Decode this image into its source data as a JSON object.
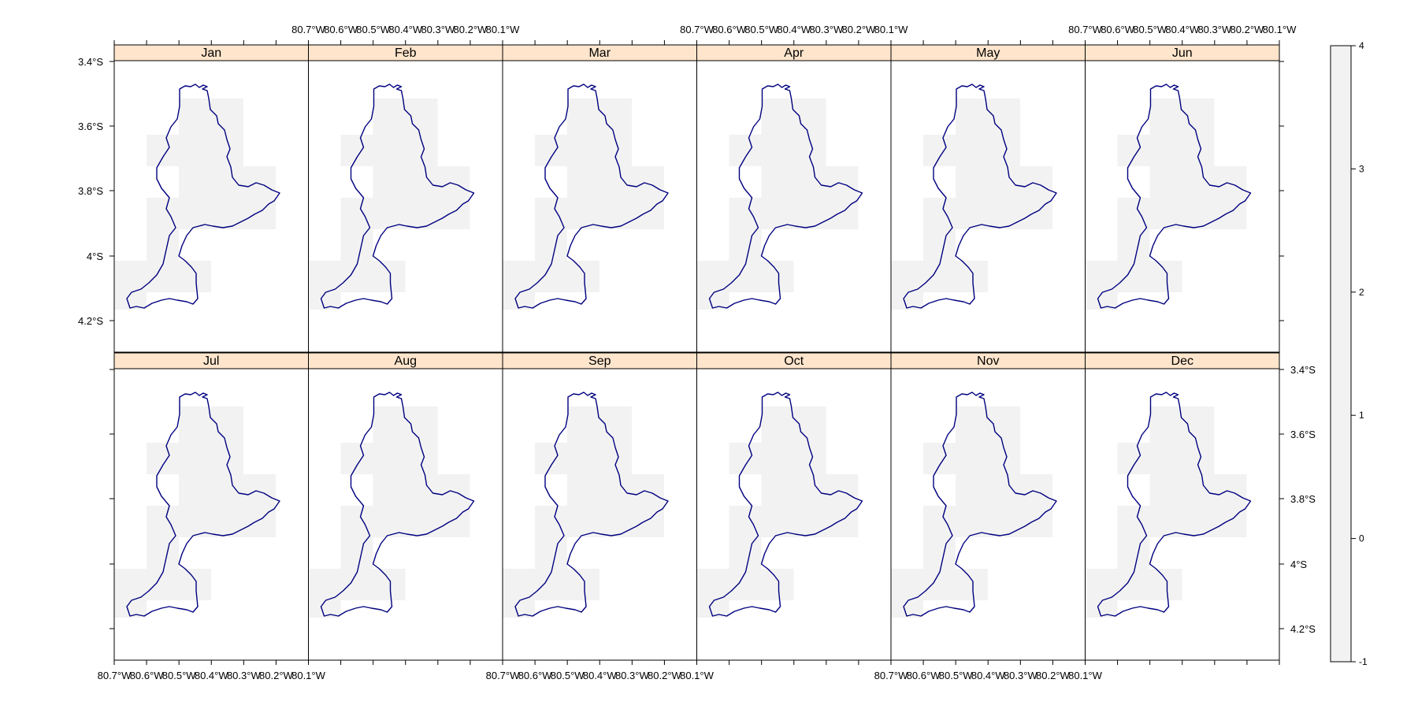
{
  "panels": [
    {
      "month": "Jan"
    },
    {
      "month": "Feb"
    },
    {
      "month": "Mar"
    },
    {
      "month": "Apr"
    },
    {
      "month": "May"
    },
    {
      "month": "Jun"
    },
    {
      "month": "Jul"
    },
    {
      "month": "Aug"
    },
    {
      "month": "Sep"
    },
    {
      "month": "Oct"
    },
    {
      "month": "Nov"
    },
    {
      "month": "Dec"
    }
  ],
  "axes": {
    "longitude_ticks": [
      "80.7°W",
      "80.6°W",
      "80.5°W",
      "80.4°W",
      "80.3°W",
      "80.2°W",
      "80.1°W"
    ],
    "latitude_ticks": [
      "3.4°S",
      "3.6°S",
      "3.8°S",
      "4°S",
      "4.2°S"
    ]
  },
  "colorkey": {
    "ticks": [
      "4",
      "3",
      "2",
      "1",
      "0",
      "-1"
    ],
    "fill_color": "#f2f2f2"
  },
  "colors": {
    "strip": "#ffe5cc",
    "raster_cells": "#f2f2f2",
    "boundary": "#000080",
    "frame": "#000000"
  }
}
